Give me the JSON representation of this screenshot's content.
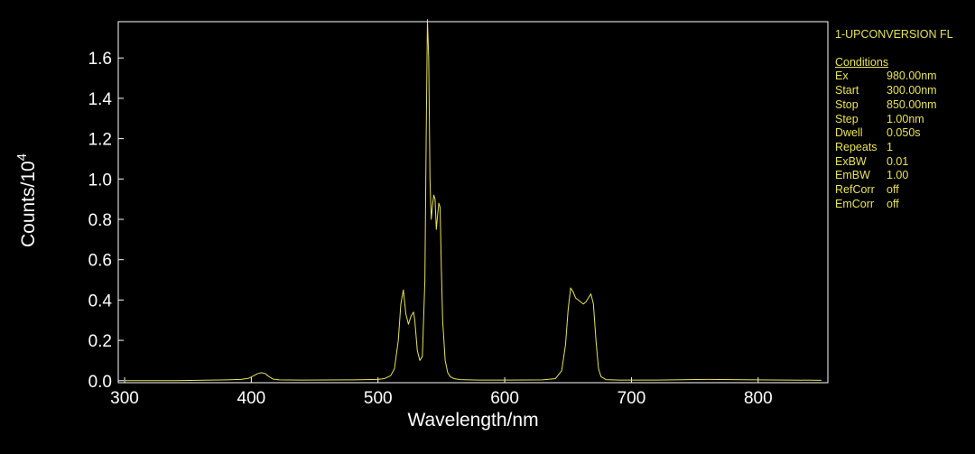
{
  "colors": {
    "background": "#000000",
    "axis": "#ffffff",
    "trace": "#e8e35a",
    "info_text": "#e8e35a"
  },
  "chart_data": {
    "type": "line",
    "title": "",
    "xlabel": "Wavelength/nm",
    "ylabel_base": "Counts/10",
    "ylabel_exp": "4",
    "xlim": [
      295,
      855
    ],
    "ylim": [
      -0.01,
      1.78
    ],
    "x_ticks": [
      300,
      400,
      500,
      600,
      700,
      800
    ],
    "y_ticks": [
      0.0,
      0.2,
      0.4,
      0.6,
      0.8,
      1.0,
      1.2,
      1.4,
      1.6
    ],
    "y_tick_labels": [
      "0.0",
      "0.2",
      "0.4",
      "0.6",
      "0.8",
      "1.0",
      "1.2",
      "1.4",
      "1.6"
    ],
    "grid": false,
    "series": [
      {
        "x": [
          300,
          340,
          380,
          392,
          398,
          402,
          405,
          408,
          411,
          414,
          417,
          422,
          440,
          480,
          500,
          505,
          510,
          513,
          516,
          518,
          520,
          522,
          524,
          526,
          528,
          529,
          531,
          533,
          535,
          537,
          538,
          539,
          540,
          541,
          542,
          543,
          544,
          545,
          546,
          547,
          548,
          549,
          550,
          551,
          553,
          555,
          557,
          560,
          565,
          580,
          600,
          630,
          640,
          645,
          648,
          650,
          652,
          654,
          656,
          658,
          660,
          662,
          664,
          666,
          668,
          670,
          672,
          674,
          676,
          680,
          690,
          720,
          760,
          800,
          850
        ],
        "y": [
          0.0,
          0.0,
          0.004,
          0.006,
          0.012,
          0.025,
          0.035,
          0.04,
          0.035,
          0.02,
          0.008,
          0.004,
          0.003,
          0.004,
          0.006,
          0.01,
          0.025,
          0.06,
          0.2,
          0.38,
          0.45,
          0.33,
          0.28,
          0.32,
          0.34,
          0.3,
          0.15,
          0.1,
          0.12,
          0.5,
          1.2,
          1.79,
          1.6,
          1.0,
          0.8,
          0.87,
          0.92,
          0.9,
          0.75,
          0.82,
          0.88,
          0.86,
          0.55,
          0.3,
          0.1,
          0.04,
          0.02,
          0.01,
          0.005,
          0.003,
          0.003,
          0.004,
          0.01,
          0.05,
          0.18,
          0.35,
          0.46,
          0.44,
          0.41,
          0.4,
          0.39,
          0.38,
          0.39,
          0.41,
          0.43,
          0.38,
          0.2,
          0.06,
          0.02,
          0.005,
          0.003,
          0.003,
          0.006,
          0.004,
          0.002
        ]
      }
    ]
  },
  "info_panel": {
    "title": "1-UPCONVERSION FL",
    "conditions_header": "Conditions",
    "conditions": [
      {
        "key": "Ex",
        "value": "980.00nm"
      },
      {
        "key": "Start",
        "value": "300.00nm"
      },
      {
        "key": "Stop",
        "value": "850.00nm"
      },
      {
        "key": "Step",
        "value": "1.00nm"
      },
      {
        "key": "Dwell",
        "value": "0.050s"
      },
      {
        "key": "Repeats",
        "value": "1"
      },
      {
        "key": "ExBW",
        "value": "0.01"
      },
      {
        "key": "EmBW",
        "value": "1.00"
      },
      {
        "key": "RefCorr",
        "value": "off"
      },
      {
        "key": "EmCorr",
        "value": "off"
      }
    ]
  }
}
